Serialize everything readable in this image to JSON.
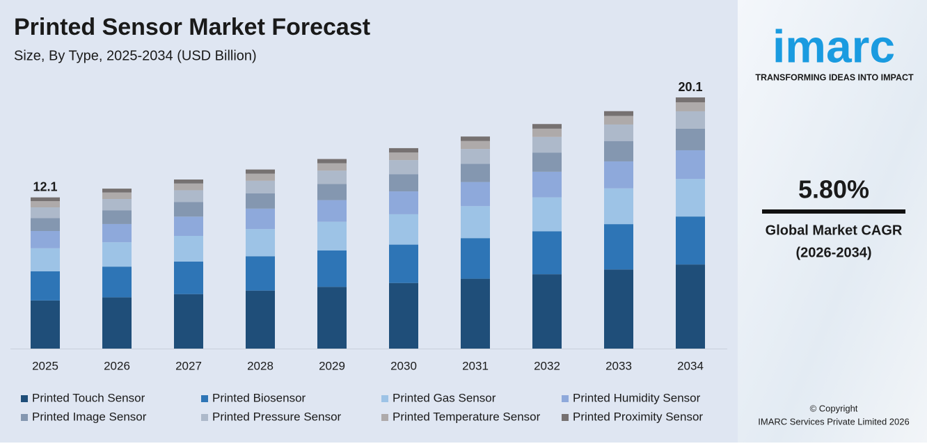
{
  "chart_data": {
    "type": "bar",
    "stacked": true,
    "title": "Printed Sensor Market Forecast",
    "subtitle": "Size, By Type, 2025-2034 (USD Billion)",
    "categories": [
      "2025",
      "2026",
      "2027",
      "2028",
      "2029",
      "2030",
      "2031",
      "2032",
      "2033",
      "2034"
    ],
    "totals": [
      12.1,
      null,
      null,
      null,
      null,
      null,
      null,
      null,
      null,
      20.1
    ],
    "series": [
      {
        "name": "Printed Touch Sensor",
        "color": "#1f4e79",
        "values": [
          3.85,
          4.1,
          4.36,
          4.64,
          4.94,
          5.25,
          5.59,
          5.95,
          6.33,
          6.73
        ]
      },
      {
        "name": "Printed Biosensor",
        "color": "#2e75b6",
        "values": [
          2.33,
          2.46,
          2.6,
          2.75,
          2.91,
          3.07,
          3.25,
          3.44,
          3.63,
          3.84
        ]
      },
      {
        "name": "Printed Gas Sensor",
        "color": "#9dc3e6",
        "values": [
          1.85,
          1.95,
          2.06,
          2.18,
          2.3,
          2.43,
          2.56,
          2.71,
          2.86,
          3.01
        ]
      },
      {
        "name": "Printed Humidity Sensor",
        "color": "#8ea9db",
        "values": [
          1.38,
          1.46,
          1.54,
          1.63,
          1.73,
          1.83,
          1.93,
          2.05,
          2.16,
          2.29
        ]
      },
      {
        "name": "Printed Image Sensor",
        "color": "#8497b0",
        "values": [
          1.04,
          1.1,
          1.16,
          1.23,
          1.3,
          1.38,
          1.46,
          1.54,
          1.63,
          1.73
        ]
      },
      {
        "name": "Printed Pressure Sensor",
        "color": "#adb9ca",
        "values": [
          0.85,
          0.9,
          0.95,
          1.0,
          1.06,
          1.12,
          1.18,
          1.25,
          1.32,
          1.39
        ]
      },
      {
        "name": "Printed Temperature Sensor",
        "color": "#aeaaaa",
        "values": [
          0.5,
          0.52,
          0.54,
          0.57,
          0.59,
          0.61,
          0.64,
          0.66,
          0.69,
          0.72
        ]
      },
      {
        "name": "Printed Proximity Sensor",
        "color": "#767171",
        "values": [
          0.3,
          0.31,
          0.32,
          0.33,
          0.34,
          0.35,
          0.36,
          0.37,
          0.38,
          0.39
        ]
      }
    ],
    "legend": "bottom"
  },
  "sidebar": {
    "logo": "imarc",
    "tagline": "TRANSFORMING IDEAS INTO IMPACT",
    "cagr": "5.80%",
    "cagr_label": "Global Market CAGR",
    "cagr_period": "(2026-2034)",
    "copyright": "© Copyright",
    "company": "IMARC Services Private Limited 2026"
  }
}
